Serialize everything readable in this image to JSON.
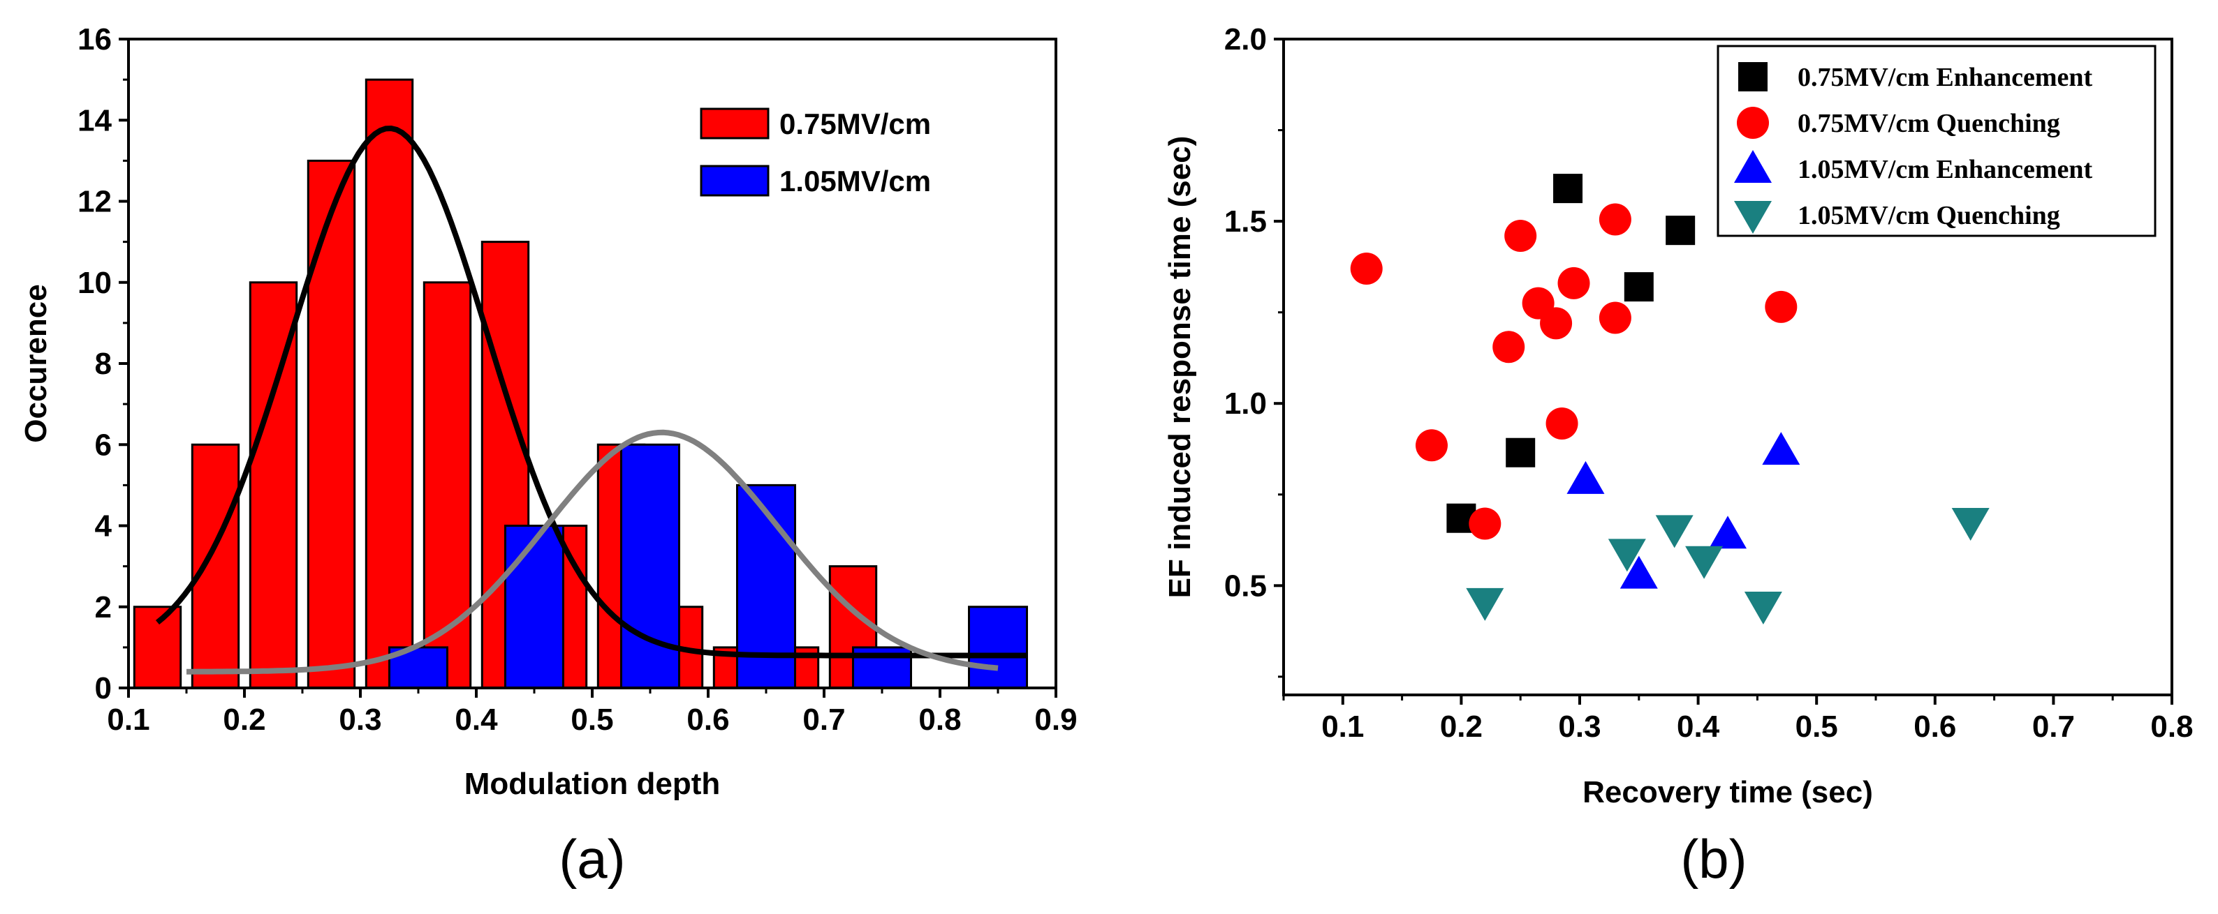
{
  "colors": {
    "red": "#ff0000",
    "blue": "#0000ff",
    "black": "#000000",
    "teal": "#1a8080",
    "gray": "#808080"
  },
  "chart_data": [
    {
      "type": "bar",
      "panel_label": "(a)",
      "xlabel": "Modulation depth",
      "ylabel": "Occurence",
      "xlim": [
        0.1,
        0.9
      ],
      "ylim": [
        0,
        16
      ],
      "xticks": [
        "0.1",
        "0.2",
        "0.3",
        "0.4",
        "0.5",
        "0.6",
        "0.7",
        "0.8",
        "0.9"
      ],
      "yticks": [
        "0",
        "2",
        "4",
        "6",
        "8",
        "10",
        "12",
        "14",
        "16"
      ],
      "legend_position": "top-right",
      "series": [
        {
          "name": "0.75MV/cm",
          "color": "#ff0000",
          "bin_width": 0.04,
          "bins": [
            {
              "x": 0.125,
              "value": 2
            },
            {
              "x": 0.175,
              "value": 6
            },
            {
              "x": 0.225,
              "value": 10
            },
            {
              "x": 0.275,
              "value": 13
            },
            {
              "x": 0.325,
              "value": 15
            },
            {
              "x": 0.375,
              "value": 10
            },
            {
              "x": 0.425,
              "value": 11
            },
            {
              "x": 0.475,
              "value": 4
            },
            {
              "x": 0.525,
              "value": 6
            },
            {
              "x": 0.575,
              "value": 2
            },
            {
              "x": 0.625,
              "value": 1
            },
            {
              "x": 0.675,
              "value": 1
            },
            {
              "x": 0.725,
              "value": 3
            }
          ]
        },
        {
          "name": "1.05MV/cm",
          "color": "#0000ff",
          "bin_width": 0.05,
          "bins": [
            {
              "x": 0.35,
              "value": 1
            },
            {
              "x": 0.45,
              "value": 4
            },
            {
              "x": 0.55,
              "value": 6
            },
            {
              "x": 0.65,
              "value": 5
            },
            {
              "x": 0.75,
              "value": 1
            },
            {
              "x": 0.85,
              "value": 2
            }
          ]
        }
      ],
      "fits": [
        {
          "name": "0.75MV/cm fit",
          "color": "#000000",
          "type": "gaussian",
          "baseline": 0.8,
          "amplitude": 13.0,
          "center": 0.325,
          "sigma": 0.085,
          "x_range": [
            0.125,
            0.875
          ]
        },
        {
          "name": "1.05MV/cm fit",
          "color": "#808080",
          "type": "gaussian",
          "baseline": 0.4,
          "amplitude": 5.9,
          "center": 0.56,
          "sigma": 0.1,
          "x_range": [
            0.15,
            0.85
          ]
        }
      ]
    },
    {
      "type": "scatter",
      "panel_label": "(b)",
      "xlabel": "Recovery time (sec)",
      "ylabel": "EF induced response time (sec)",
      "xlim": [
        0.05,
        0.8
      ],
      "ylim": [
        0.2,
        2.0
      ],
      "xticks": [
        "0.1",
        "0.2",
        "0.3",
        "0.4",
        "0.5",
        "0.6",
        "0.7",
        "0.8"
      ],
      "yticks": [
        "0.5",
        "1.0",
        "1.5",
        "2.0"
      ],
      "legend_position": "top-right",
      "series": [
        {
          "name": "0.75MV/cm Enhancement",
          "marker": "square",
          "color": "#000000",
          "points": [
            [
              0.29,
              1.59
            ],
            [
              0.385,
              1.475
            ],
            [
              0.35,
              1.32
            ],
            [
              0.25,
              0.865
            ],
            [
              0.2,
              0.685
            ]
          ]
        },
        {
          "name": "0.75MV/cm Quenching",
          "marker": "circle",
          "color": "#ff0000",
          "points": [
            [
              0.12,
              1.37
            ],
            [
              0.25,
              1.46
            ],
            [
              0.33,
              1.505
            ],
            [
              0.295,
              1.33
            ],
            [
              0.265,
              1.275
            ],
            [
              0.28,
              1.22
            ],
            [
              0.33,
              1.235
            ],
            [
              0.24,
              1.155
            ],
            [
              0.47,
              1.265
            ],
            [
              0.285,
              0.945
            ],
            [
              0.175,
              0.885
            ],
            [
              0.22,
              0.67
            ]
          ]
        },
        {
          "name": "1.05MV/cm Enhancement",
          "marker": "triangle-up",
          "color": "#0000ff",
          "points": [
            [
              0.305,
              0.79
            ],
            [
              0.47,
              0.87
            ],
            [
              0.425,
              0.64
            ],
            [
              0.35,
              0.53
            ]
          ]
        },
        {
          "name": "1.05MV/cm Quenching",
          "marker": "triangle-down",
          "color": "#1a8080",
          "points": [
            [
              0.22,
              0.455
            ],
            [
              0.34,
              0.59
            ],
            [
              0.38,
              0.655
            ],
            [
              0.405,
              0.57
            ],
            [
              0.455,
              0.445
            ],
            [
              0.63,
              0.675
            ]
          ]
        }
      ]
    }
  ]
}
